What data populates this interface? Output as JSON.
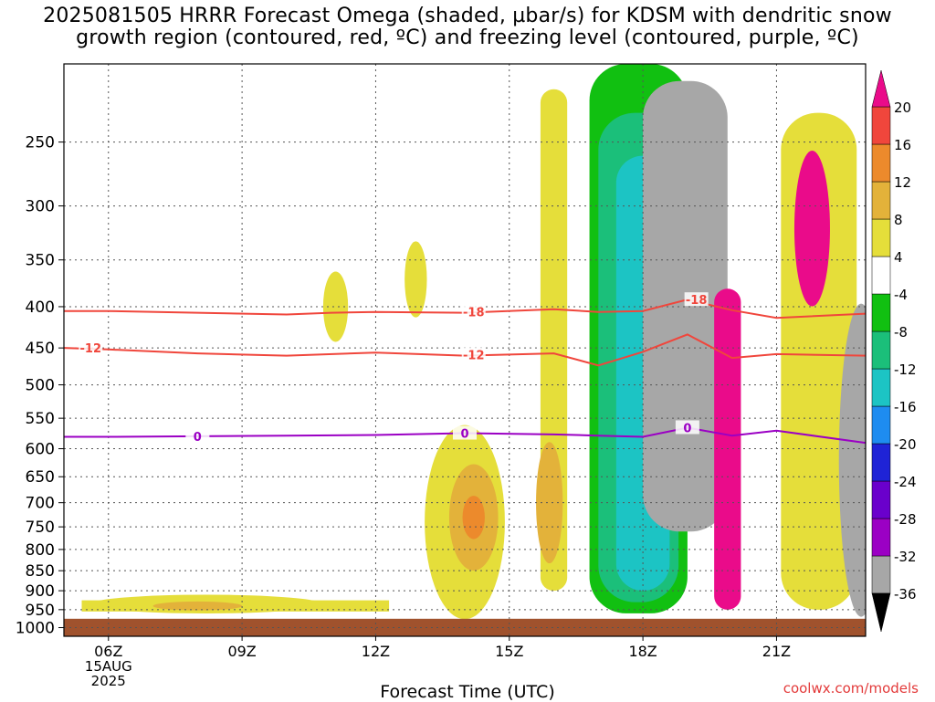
{
  "title": {
    "line1": "2025081505 HRRR Forecast Omega (shaded, µbar/s) for KDSM with dendritic snow",
    "line2": "growth region (contoured, red, ºC) and freezing level (contoured, purple, ºC)"
  },
  "footer": "coolwx.com/models",
  "chart_data": {
    "type": "heatmap",
    "title": "2025081505 HRRR Forecast Omega (shaded, µbar/s) for KDSM with dendritic snow growth region (contoured, red, ºC) and freezing level (contoured, purple, ºC)",
    "xlabel": "Forecast Time (UTC)",
    "ylabel": "",
    "x_range_hours_utc": [
      5,
      23
    ],
    "x_ticks": [
      {
        "hour": 6,
        "label": "06Z",
        "sub": [
          "15AUG",
          "2025"
        ]
      },
      {
        "hour": 9,
        "label": "09Z"
      },
      {
        "hour": 12,
        "label": "12Z"
      },
      {
        "hour": 15,
        "label": "15Z"
      },
      {
        "hour": 18,
        "label": "18Z"
      },
      {
        "hour": 21,
        "label": "21Z"
      }
    ],
    "y_axis": {
      "scale": "log",
      "range_hpa": [
        1025,
        200
      ],
      "reversed": true,
      "ticks": [
        250,
        300,
        350,
        400,
        450,
        500,
        550,
        600,
        650,
        700,
        750,
        800,
        850,
        900,
        950,
        1000
      ]
    },
    "grid": true,
    "colorbar": {
      "placement": "right",
      "labels": [
        "20",
        "16",
        "12",
        "8",
        "4",
        "-4",
        "-8",
        "-12",
        "-16",
        "-20",
        "-24",
        "-28",
        "-32",
        "-36"
      ],
      "bins": [
        {
          "from": -40,
          "to": -36,
          "color": "#000000"
        },
        {
          "from": -36,
          "to": -32,
          "color": "#a7a7a7"
        },
        {
          "from": -32,
          "to": -28,
          "color": "#9b00c4"
        },
        {
          "from": -28,
          "to": -24,
          "color": "#6a00cc"
        },
        {
          "from": -24,
          "to": -20,
          "color": "#1f23d6"
        },
        {
          "from": -20,
          "to": -16,
          "color": "#1e8cf0"
        },
        {
          "from": -16,
          "to": -12,
          "color": "#1cc4c4"
        },
        {
          "from": -12,
          "to": -8,
          "color": "#1bbf7a"
        },
        {
          "from": -8,
          "to": -4,
          "color": "#11c011"
        },
        {
          "from": -4,
          "to": 4,
          "color": "#ffffff"
        },
        {
          "from": 4,
          "to": 8,
          "color": "#e5de3a"
        },
        {
          "from": 8,
          "to": 12,
          "color": "#e3b23a"
        },
        {
          "from": 12,
          "to": 16,
          "color": "#ec8a2c"
        },
        {
          "from": 16,
          "to": 20,
          "color": "#f0463c"
        },
        {
          "from": 20,
          "to": 24,
          "color": "#ea0b8a"
        }
      ]
    },
    "ground_color": "#a0522d",
    "contours": [
      {
        "series": "dendritic",
        "label": "-18",
        "color": "#f0463c",
        "points": [
          [
            5,
            405
          ],
          [
            6,
            405
          ],
          [
            8,
            407
          ],
          [
            10,
            409
          ],
          [
            11,
            407
          ],
          [
            12,
            406
          ],
          [
            14,
            407
          ],
          [
            16,
            403
          ],
          [
            17,
            406
          ],
          [
            18,
            405
          ],
          [
            19,
            392
          ],
          [
            20,
            404
          ],
          [
            21,
            413
          ],
          [
            23,
            408
          ]
        ]
      },
      {
        "series": "dendritic",
        "label": "-12",
        "color": "#f0463c",
        "points": [
          [
            5,
            450
          ],
          [
            6,
            452
          ],
          [
            8,
            457
          ],
          [
            10,
            460
          ],
          [
            12,
            456
          ],
          [
            14,
            460
          ],
          [
            16,
            457
          ],
          [
            17,
            473
          ],
          [
            18,
            455
          ],
          [
            19,
            433
          ],
          [
            20,
            463
          ],
          [
            21,
            458
          ],
          [
            23,
            460
          ]
        ]
      },
      {
        "series": "freezing level",
        "label": "0",
        "color": "#9b00c4",
        "points": [
          [
            5,
            580
          ],
          [
            6,
            580
          ],
          [
            8,
            579
          ],
          [
            10,
            578
          ],
          [
            12,
            577
          ],
          [
            14,
            574
          ],
          [
            16,
            576
          ],
          [
            17,
            578
          ],
          [
            18,
            580
          ],
          [
            19,
            565
          ],
          [
            20,
            578
          ],
          [
            21,
            570
          ],
          [
            23,
            590
          ]
        ]
      }
    ],
    "contour_label_positions": [
      {
        "label": "-12",
        "x": 5.6,
        "p": 450,
        "color": "#f0463c"
      },
      {
        "label": "-18",
        "x": 14.2,
        "p": 406,
        "color": "#f0463c"
      },
      {
        "label": "-12",
        "x": 14.2,
        "p": 459,
        "color": "#f0463c"
      },
      {
        "label": "-18",
        "x": 19.2,
        "p": 392,
        "color": "#f0463c"
      },
      {
        "label": "0",
        "x": 8.0,
        "p": 579,
        "color": "#9b00c4"
      },
      {
        "label": "0",
        "x": 14.0,
        "p": 574,
        "color": "#9b00c4"
      },
      {
        "label": "0",
        "x": 19.0,
        "p": 565,
        "color": "#9b00c4"
      }
    ],
    "omega_regions": [
      {
        "value": "4",
        "shape": "rect",
        "x": [
          5,
          23
        ],
        "p": [
          200,
          200
        ]
      },
      {
        "value": "4",
        "shape": "ellipse",
        "center": [
          8.2,
          935
        ],
        "rx_h": 2.6,
        "p_half": 25
      },
      {
        "value": "4",
        "shape": "rect",
        "x": [
          5.4,
          12.3
        ],
        "p": [
          925,
          955
        ]
      },
      {
        "value": "8",
        "shape": "ellipse",
        "center": [
          8.0,
          940
        ],
        "rx_h": 1.0,
        "p_half": 12
      },
      {
        "value": "4",
        "shape": "ellipse",
        "center": [
          11.1,
          400
        ],
        "rx_h": 0.28,
        "p_half": 40
      },
      {
        "value": "4",
        "shape": "ellipse",
        "center": [
          12.9,
          370
        ],
        "rx_h": 0.25,
        "p_half": 40
      },
      {
        "value": "4",
        "shape": "ellipse",
        "center": [
          14.0,
          740
        ],
        "rx_h": 0.9,
        "p_half": 200
      },
      {
        "value": "8",
        "shape": "ellipse",
        "center": [
          14.2,
          730
        ],
        "rx_h": 0.55,
        "p_half": 110
      },
      {
        "value": "12",
        "shape": "ellipse",
        "center": [
          14.2,
          730
        ],
        "rx_h": 0.25,
        "p_half": 45
      },
      {
        "value": "4",
        "shape": "column",
        "x": [
          15.7,
          16.3
        ],
        "p": [
          215,
          900
        ]
      },
      {
        "value": "8",
        "shape": "ellipse",
        "center": [
          15.9,
          700
        ],
        "rx_h": 0.3,
        "p_half": 120
      },
      {
        "value": "-8",
        "shape": "column",
        "x": [
          16.8,
          19.0
        ],
        "p": [
          200,
          960
        ]
      },
      {
        "value": "-12",
        "shape": "column",
        "x": [
          17.0,
          18.8
        ],
        "p": [
          230,
          930
        ]
      },
      {
        "value": "-16",
        "shape": "column",
        "x": [
          17.4,
          18.6
        ],
        "p": [
          260,
          900
        ]
      },
      {
        "value": "-36",
        "shape": "column",
        "x": [
          18.0,
          19.9
        ],
        "p": [
          210,
          760
        ]
      },
      {
        "value": "20",
        "shape": "column",
        "x": [
          19.6,
          20.2
        ],
        "p": [
          380,
          950
        ]
      },
      {
        "value": "4",
        "shape": "column",
        "x": [
          21.1,
          22.8
        ],
        "p": [
          230,
          950
        ]
      },
      {
        "value": "20",
        "shape": "ellipse",
        "center": [
          21.8,
          320
        ],
        "rx_h": 0.4,
        "p_half": 70
      },
      {
        "value": "-36",
        "shape": "ellipse",
        "center": [
          22.9,
          620
        ],
        "rx_h": 0.5,
        "p_half": 260
      }
    ]
  }
}
